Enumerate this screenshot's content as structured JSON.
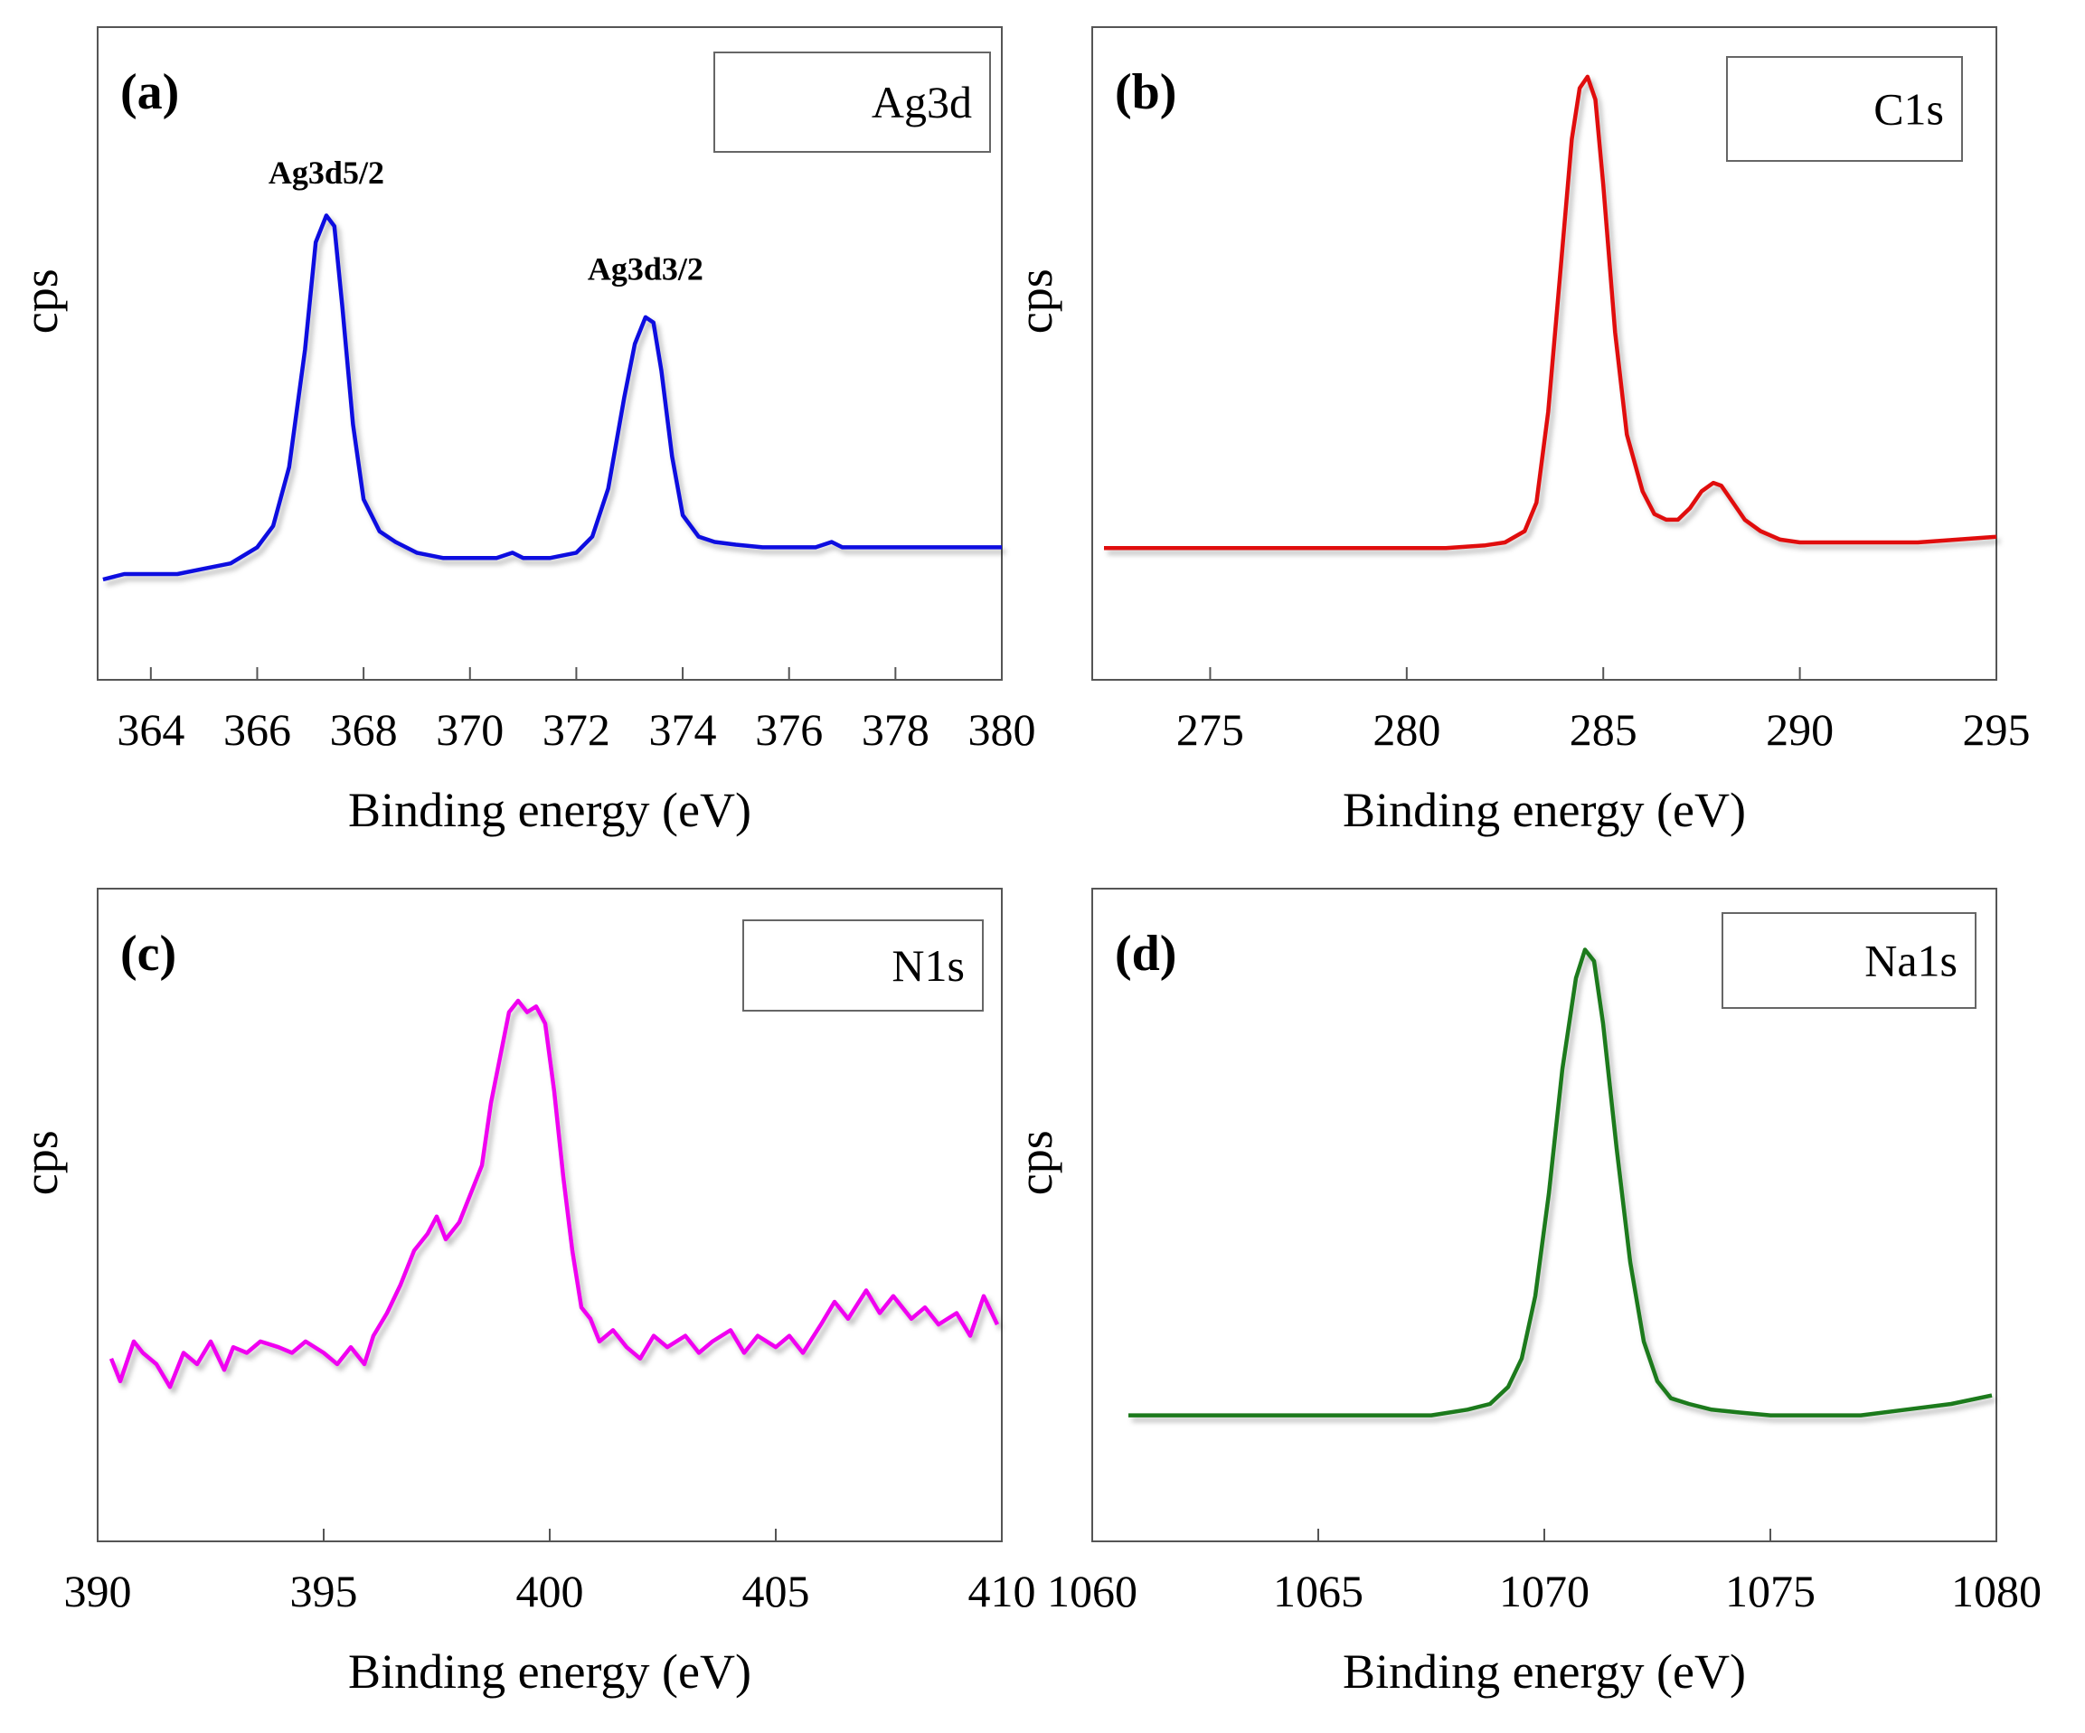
{
  "chart_data": [
    {
      "type": "line",
      "panel_label": "(a)",
      "xlabel": "Binding energy (eV)",
      "ylabel": "cps",
      "xlim": [
        363,
        380
      ],
      "ylim": [
        0,
        1
      ],
      "xticks": [
        364,
        366,
        368,
        370,
        372,
        374,
        376,
        378,
        380
      ],
      "legend": {
        "text": "Ag3d",
        "placement": "top-right"
      },
      "color": "#1010e0",
      "annotations": [
        {
          "text": "Ag3d5/2",
          "x": 367.3,
          "y": 0.83
        },
        {
          "text": "Ag3d3/2",
          "x": 373.3,
          "y": 0.65
        }
      ],
      "series": [
        {
          "x": [
            363.1,
            363.5,
            364,
            364.5,
            365,
            365.5,
            366,
            366.3,
            366.6,
            366.9,
            367.1,
            367.3,
            367.45,
            367.6,
            367.8,
            368,
            368.3,
            368.6,
            369,
            369.5,
            370,
            370.5,
            370.8,
            371,
            371.5,
            372,
            372.3,
            372.6,
            372.9,
            373.1,
            373.3,
            373.45,
            373.6,
            373.8,
            374,
            374.3,
            374.6,
            375,
            375.5,
            376,
            376.5,
            376.8,
            377,
            377.5,
            378,
            378.5,
            379,
            379.5,
            380
          ],
          "y": [
            0.09,
            0.1,
            0.1,
            0.1,
            0.11,
            0.12,
            0.15,
            0.19,
            0.3,
            0.52,
            0.72,
            0.77,
            0.75,
            0.6,
            0.38,
            0.24,
            0.18,
            0.16,
            0.14,
            0.13,
            0.13,
            0.13,
            0.14,
            0.13,
            0.13,
            0.14,
            0.17,
            0.26,
            0.43,
            0.53,
            0.58,
            0.57,
            0.48,
            0.32,
            0.21,
            0.17,
            0.16,
            0.155,
            0.15,
            0.15,
            0.15,
            0.16,
            0.15,
            0.15,
            0.15,
            0.15,
            0.15,
            0.15,
            0.15
          ]
        }
      ]
    },
    {
      "type": "line",
      "panel_label": "(b)",
      "xlabel": "Binding energy (eV)",
      "ylabel": "cps",
      "xlim": [
        272,
        295
      ],
      "ylim": [
        0,
        1
      ],
      "xticks": [
        275,
        280,
        285,
        290,
        295
      ],
      "legend": {
        "text": "C1s",
        "placement": "top-right"
      },
      "color": "#e01010",
      "series": [
        {
          "x": [
            272.3,
            274,
            276,
            278,
            280,
            281,
            282,
            282.5,
            283,
            283.3,
            283.6,
            283.9,
            284.2,
            284.4,
            284.6,
            284.8,
            285,
            285.3,
            285.6,
            286,
            286.3,
            286.6,
            286.9,
            287.2,
            287.5,
            287.8,
            288,
            288.3,
            288.6,
            289,
            289.5,
            290,
            291,
            292,
            293,
            294,
            295
          ],
          "y": [
            0.14,
            0.14,
            0.14,
            0.14,
            0.14,
            0.14,
            0.145,
            0.15,
            0.17,
            0.22,
            0.38,
            0.62,
            0.86,
            0.95,
            0.97,
            0.93,
            0.78,
            0.52,
            0.34,
            0.24,
            0.2,
            0.19,
            0.19,
            0.21,
            0.24,
            0.255,
            0.25,
            0.22,
            0.19,
            0.17,
            0.155,
            0.15,
            0.15,
            0.15,
            0.15,
            0.155,
            0.16
          ]
        }
      ]
    },
    {
      "type": "line",
      "panel_label": "(c)",
      "xlabel": "Binding energy (eV)",
      "ylabel": "cps",
      "xlim": [
        390,
        410
      ],
      "ylim": [
        0,
        1
      ],
      "xticks": [
        390,
        395,
        400,
        405,
        410
      ],
      "legend": {
        "text": "N1s",
        "placement": "top-right"
      },
      "color": "#f000f0",
      "series": [
        {
          "x": [
            390.3,
            390.5,
            390.8,
            391,
            391.3,
            391.6,
            391.9,
            392.2,
            392.5,
            392.8,
            393,
            393.3,
            393.6,
            394,
            394.3,
            394.6,
            395,
            395.3,
            395.6,
            395.9,
            396.1,
            396.4,
            396.7,
            397,
            397.3,
            397.5,
            397.7,
            398,
            398.3,
            398.5,
            398.7,
            398.9,
            399.1,
            399.3,
            399.5,
            399.7,
            399.9,
            400.1,
            400.3,
            400.5,
            400.7,
            400.9,
            401.1,
            401.4,
            401.7,
            402,
            402.3,
            402.6,
            403,
            403.3,
            403.6,
            404,
            404.3,
            404.6,
            405,
            405.3,
            405.6,
            406,
            406.3,
            406.6,
            407,
            407.3,
            407.6,
            408,
            408.3,
            408.6,
            409,
            409.3,
            409.6,
            409.9
          ],
          "y": [
            0.23,
            0.19,
            0.26,
            0.24,
            0.22,
            0.18,
            0.24,
            0.22,
            0.26,
            0.21,
            0.25,
            0.24,
            0.26,
            0.25,
            0.24,
            0.26,
            0.24,
            0.22,
            0.25,
            0.22,
            0.27,
            0.31,
            0.36,
            0.42,
            0.45,
            0.48,
            0.44,
            0.47,
            0.53,
            0.57,
            0.68,
            0.76,
            0.84,
            0.86,
            0.84,
            0.85,
            0.82,
            0.7,
            0.55,
            0.42,
            0.32,
            0.3,
            0.26,
            0.28,
            0.25,
            0.23,
            0.27,
            0.25,
            0.27,
            0.24,
            0.26,
            0.28,
            0.24,
            0.27,
            0.25,
            0.27,
            0.24,
            0.29,
            0.33,
            0.3,
            0.35,
            0.31,
            0.34,
            0.3,
            0.32,
            0.29,
            0.31,
            0.27,
            0.34,
            0.29
          ]
        }
      ]
    },
    {
      "type": "line",
      "panel_label": "(d)",
      "xlabel": "Binding energy (eV)",
      "ylabel": "cps",
      "xlim": [
        1060,
        1080
      ],
      "ylim": [
        0,
        1
      ],
      "xticks": [
        1060,
        1065,
        1070,
        1075,
        1080
      ],
      "legend": {
        "text": "Na1s",
        "placement": "top-right"
      },
      "color": "#1a7a1a",
      "series": [
        {
          "x": [
            1060.8,
            1061.5,
            1062.5,
            1063.5,
            1064.5,
            1065.5,
            1066.5,
            1067.5,
            1068.3,
            1068.8,
            1069.2,
            1069.5,
            1069.8,
            1070.1,
            1070.4,
            1070.7,
            1070.9,
            1071.1,
            1071.3,
            1071.6,
            1071.9,
            1072.2,
            1072.5,
            1072.8,
            1073.2,
            1073.7,
            1074.3,
            1075,
            1076,
            1077,
            1078,
            1079,
            1079.9
          ],
          "y": [
            0.13,
            0.13,
            0.13,
            0.13,
            0.13,
            0.13,
            0.13,
            0.13,
            0.14,
            0.15,
            0.18,
            0.23,
            0.34,
            0.52,
            0.74,
            0.9,
            0.95,
            0.93,
            0.82,
            0.6,
            0.4,
            0.26,
            0.19,
            0.16,
            0.15,
            0.14,
            0.135,
            0.13,
            0.13,
            0.13,
            0.14,
            0.15,
            0.165
          ]
        }
      ]
    }
  ]
}
